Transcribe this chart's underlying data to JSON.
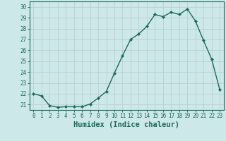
{
  "x": [
    0,
    1,
    2,
    3,
    4,
    5,
    6,
    7,
    8,
    9,
    10,
    11,
    12,
    13,
    14,
    15,
    16,
    17,
    18,
    19,
    20,
    21,
    22,
    23
  ],
  "y": [
    22.0,
    21.8,
    20.9,
    20.75,
    20.8,
    20.8,
    20.8,
    21.05,
    21.6,
    22.2,
    23.9,
    25.5,
    27.0,
    27.5,
    28.2,
    29.3,
    29.1,
    29.5,
    29.3,
    29.8,
    28.7,
    26.9,
    25.2,
    22.4
  ],
  "line_color": "#1a6b5a",
  "marker": "D",
  "marker_size": 2.2,
  "bg_color": "#cde8e8",
  "grid_color": "#b8d0d0",
  "axis_color": "#1a6b5a",
  "xlabel": "Humidex (Indice chaleur)",
  "xlim": [
    -0.5,
    23.5
  ],
  "ylim": [
    20.5,
    30.5
  ],
  "yticks": [
    21,
    22,
    23,
    24,
    25,
    26,
    27,
    28,
    29,
    30
  ],
  "xticks": [
    0,
    1,
    2,
    3,
    4,
    5,
    6,
    7,
    8,
    9,
    10,
    11,
    12,
    13,
    14,
    15,
    16,
    17,
    18,
    19,
    20,
    21,
    22,
    23
  ],
  "tick_label_size": 5.5,
  "xlabel_size": 7.5,
  "xlabel_fontweight": "bold",
  "linewidth": 1.0
}
